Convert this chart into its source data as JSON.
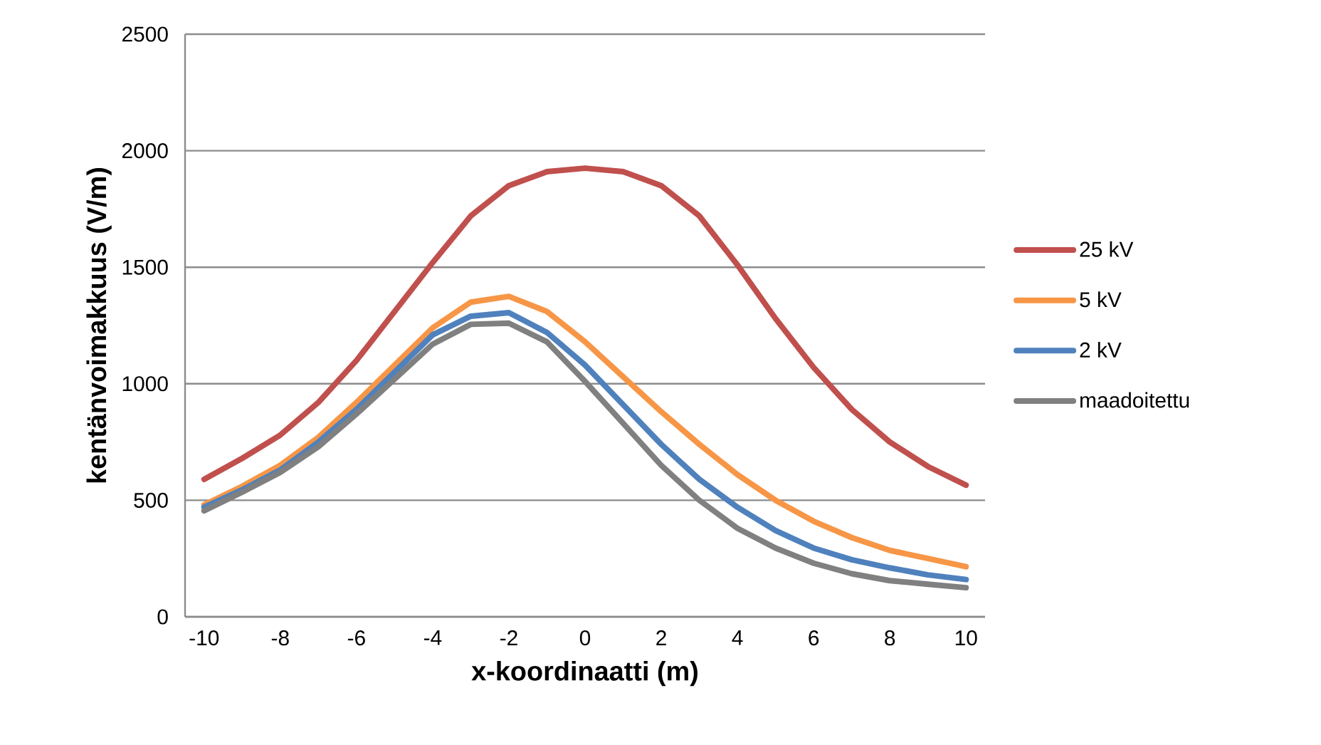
{
  "chart_data": {
    "type": "line",
    "xlabel": "x-koordinaatti (m)",
    "ylabel": "kentänvoimakkuus (V/m)",
    "x": [
      -10,
      -9,
      -8,
      -7,
      -6,
      -5,
      -4,
      -3,
      -2,
      -1,
      0,
      1,
      2,
      3,
      4,
      5,
      6,
      7,
      8,
      9,
      10
    ],
    "series": [
      {
        "name": "25 kV",
        "color": "#c0504d",
        "values": [
          590,
          680,
          780,
          920,
          1100,
          1310,
          1520,
          1720,
          1850,
          1910,
          1925,
          1910,
          1850,
          1720,
          1510,
          1280,
          1070,
          890,
          750,
          645,
          565
        ]
      },
      {
        "name": "5 kV",
        "color": "#f79646",
        "values": [
          480,
          560,
          650,
          770,
          920,
          1080,
          1240,
          1350,
          1375,
          1310,
          1180,
          1030,
          880,
          740,
          610,
          500,
          410,
          340,
          285,
          250,
          215
        ]
      },
      {
        "name": "2 kV",
        "color": "#4f81bd",
        "values": [
          470,
          545,
          630,
          750,
          890,
          1050,
          1210,
          1290,
          1305,
          1220,
          1080,
          910,
          740,
          590,
          470,
          370,
          295,
          245,
          210,
          180,
          160
        ]
      },
      {
        "name": "maadoitettu",
        "color": "#808080",
        "values": [
          455,
          535,
          620,
          730,
          870,
          1020,
          1170,
          1255,
          1260,
          1180,
          1010,
          830,
          650,
          500,
          380,
          295,
          230,
          185,
          155,
          140,
          125
        ]
      }
    ],
    "xlim": [
      -10.5,
      10.5
    ],
    "xticks": [
      -10,
      -8,
      -6,
      -4,
      -2,
      0,
      2,
      4,
      6,
      8,
      10
    ],
    "ylim": [
      0,
      2500
    ],
    "yticks": [
      0,
      500,
      1000,
      1500,
      2000,
      2500
    ],
    "grid": "y",
    "legend": "right",
    "marker": "none",
    "line_style": "solid"
  }
}
